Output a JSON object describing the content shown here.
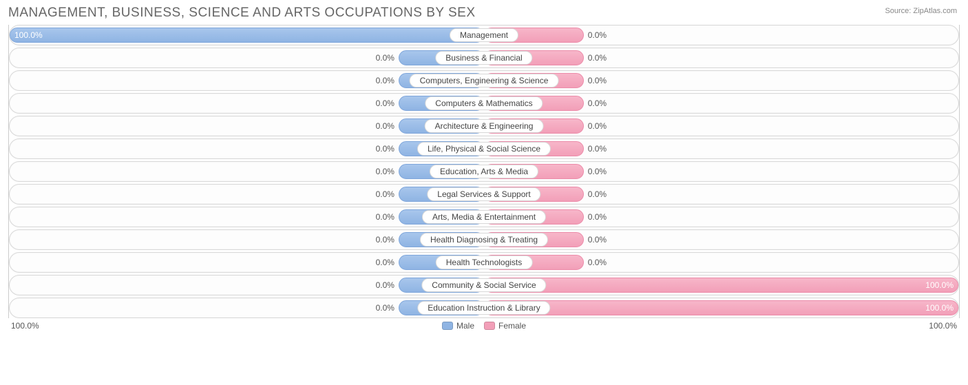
{
  "title": "MANAGEMENT, BUSINESS, SCIENCE AND ARTS OCCUPATIONS BY SEX",
  "source_label": "Source:",
  "source_name": "ZipAtlas.com",
  "axis": {
    "left": "100.0%",
    "right": "100.0%"
  },
  "legend": {
    "male": {
      "label": "Male",
      "swatch": "#8fb4e3"
    },
    "female": {
      "label": "Female",
      "swatch": "#f29fb8"
    }
  },
  "style": {
    "male_bar_default_pct": 18,
    "female_bar_default_pct": 21,
    "male_fill": "#8fb4e3",
    "female_fill": "#f29fb8",
    "track_border": "#d8d8d8",
    "track_bg": "#fdfdfd",
    "title_color": "#666666",
    "label_color": "#444444",
    "pct_color": "#555555"
  },
  "rows": [
    {
      "category": "Management",
      "male_pct": 100.0,
      "male_text": "100.0%",
      "female_pct": 0.0,
      "female_text": "0.0%"
    },
    {
      "category": "Business & Financial",
      "male_pct": 0.0,
      "male_text": "0.0%",
      "female_pct": 0.0,
      "female_text": "0.0%"
    },
    {
      "category": "Computers, Engineering & Science",
      "male_pct": 0.0,
      "male_text": "0.0%",
      "female_pct": 0.0,
      "female_text": "0.0%"
    },
    {
      "category": "Computers & Mathematics",
      "male_pct": 0.0,
      "male_text": "0.0%",
      "female_pct": 0.0,
      "female_text": "0.0%"
    },
    {
      "category": "Architecture & Engineering",
      "male_pct": 0.0,
      "male_text": "0.0%",
      "female_pct": 0.0,
      "female_text": "0.0%"
    },
    {
      "category": "Life, Physical & Social Science",
      "male_pct": 0.0,
      "male_text": "0.0%",
      "female_pct": 0.0,
      "female_text": "0.0%"
    },
    {
      "category": "Education, Arts & Media",
      "male_pct": 0.0,
      "male_text": "0.0%",
      "female_pct": 0.0,
      "female_text": "0.0%"
    },
    {
      "category": "Legal Services & Support",
      "male_pct": 0.0,
      "male_text": "0.0%",
      "female_pct": 0.0,
      "female_text": "0.0%"
    },
    {
      "category": "Arts, Media & Entertainment",
      "male_pct": 0.0,
      "male_text": "0.0%",
      "female_pct": 0.0,
      "female_text": "0.0%"
    },
    {
      "category": "Health Diagnosing & Treating",
      "male_pct": 0.0,
      "male_text": "0.0%",
      "female_pct": 0.0,
      "female_text": "0.0%"
    },
    {
      "category": "Health Technologists",
      "male_pct": 0.0,
      "male_text": "0.0%",
      "female_pct": 0.0,
      "female_text": "0.0%"
    },
    {
      "category": "Community & Social Service",
      "male_pct": 0.0,
      "male_text": "0.0%",
      "female_pct": 100.0,
      "female_text": "100.0%"
    },
    {
      "category": "Education Instruction & Library",
      "male_pct": 0.0,
      "male_text": "0.0%",
      "female_pct": 100.0,
      "female_text": "100.0%"
    }
  ]
}
